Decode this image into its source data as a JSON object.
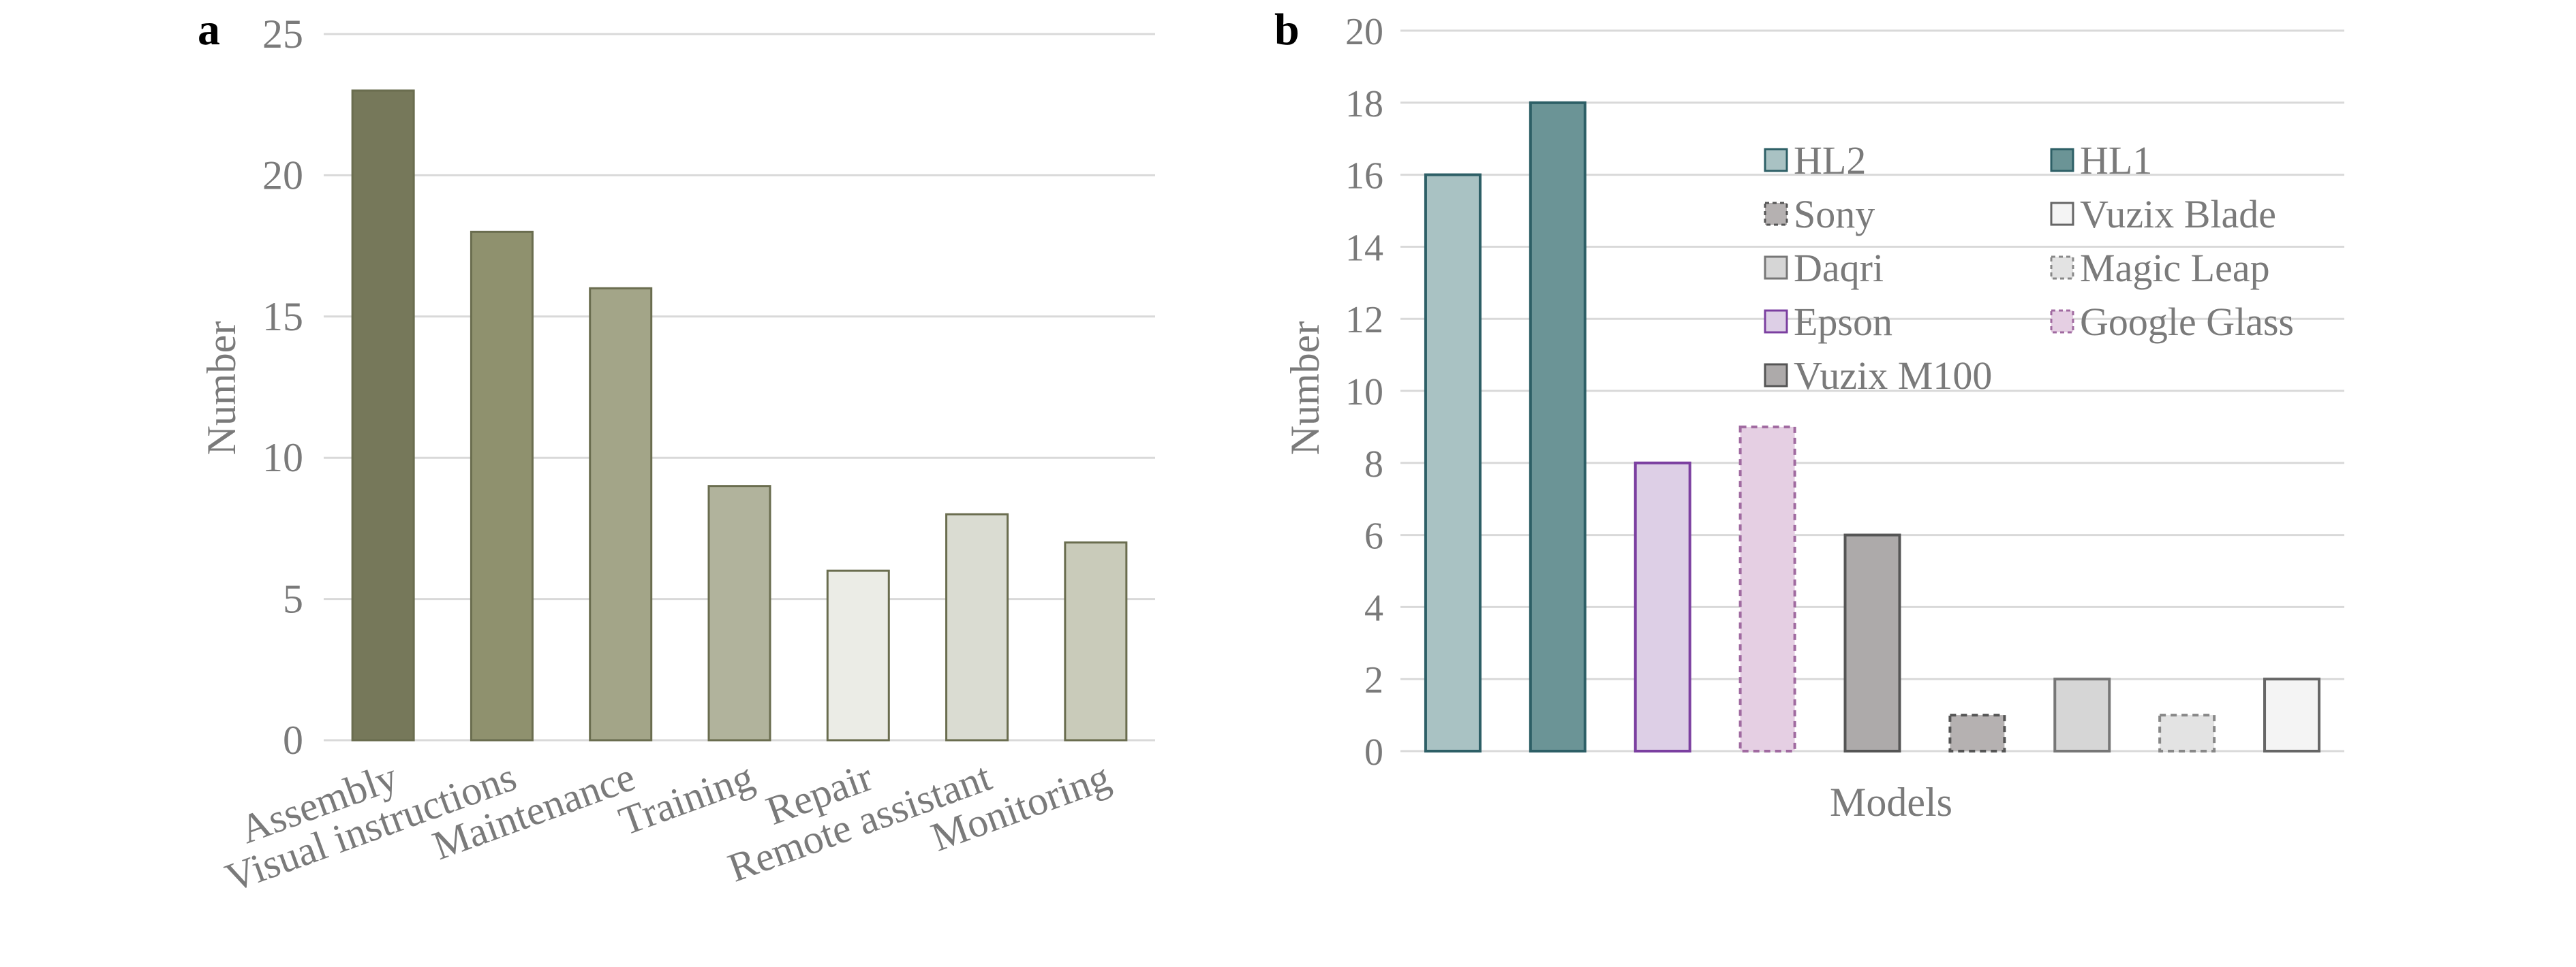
{
  "panels": [
    {
      "panel_label": "a",
      "chart_data": {
        "type": "bar",
        "categories": [
          "Assembly",
          "Visual instructions",
          "Maintenance",
          "Training",
          "Repair",
          "Remote assistant",
          "Monitoring"
        ],
        "values": [
          23,
          18,
          16,
          9,
          6,
          8,
          7
        ],
        "ylabel": "Number",
        "xlabel": "",
        "ylim": [
          0,
          25
        ],
        "yticks": [
          "0",
          "5",
          "10",
          "15",
          "20",
          "25"
        ],
        "grid": true,
        "colors": [
          "#76785a",
          "#8f916e",
          "#a3a588",
          "#b1b39c",
          "#ebece6",
          "#dadcd2",
          "#c9cbba"
        ],
        "stroke": "#6a6d4f"
      }
    },
    {
      "panel_label": "b",
      "chart_data": {
        "type": "bar",
        "series": [
          {
            "name": "HL2",
            "values": [
              16
            ],
            "color": "#a9c2c3",
            "stroke": "#2d5f66",
            "dash": false
          },
          {
            "name": "HL1",
            "values": [
              18
            ],
            "color": "#6b9496",
            "stroke": "#2d5f66",
            "dash": false
          },
          {
            "name": "Epson",
            "values": [
              8
            ],
            "color": "#ddcfe6",
            "stroke": "#7b3fa0",
            "dash": false
          },
          {
            "name": "Google Glass",
            "values": [
              9
            ],
            "color": "#e5cfe3",
            "stroke": "#a06aa0",
            "dash": true
          },
          {
            "name": "Vuzix M100",
            "values": [
              6
            ],
            "color": "#adaaaa",
            "stroke": "#555555",
            "dash": false
          },
          {
            "name": "Sony",
            "values": [
              1
            ],
            "color": "#b5b1b1",
            "stroke": "#555555",
            "dash": true
          },
          {
            "name": "Daqri",
            "values": [
              2
            ],
            "color": "#d6d6d6",
            "stroke": "#777777",
            "dash": false
          },
          {
            "name": "Magic Leap",
            "values": [
              1
            ],
            "color": "#e3e3e3",
            "stroke": "#888888",
            "dash": true
          },
          {
            "name": "Vuzix Blade",
            "values": [
              2
            ],
            "color": "#f4f4f4",
            "stroke": "#666666",
            "dash": false
          }
        ],
        "legend_entries": [
          "HL2",
          "HL1",
          "Sony",
          "Vuzix Blade",
          "Daqri",
          "Magic Leap",
          "Epson",
          "Google Glass",
          "Vuzix M100"
        ],
        "legend_placement": "top-right",
        "ylabel": "Number",
        "xlabel": "Models",
        "ylim": [
          0,
          20
        ],
        "yticks": [
          "0",
          "2",
          "4",
          "6",
          "8",
          "10",
          "12",
          "14",
          "16",
          "18",
          "20"
        ],
        "grid": true
      }
    }
  ]
}
